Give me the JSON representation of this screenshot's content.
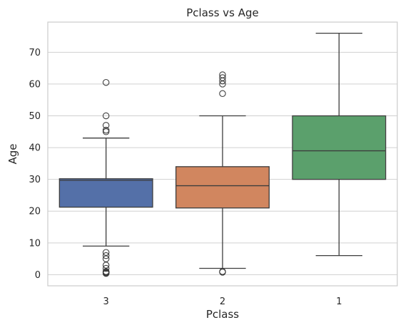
{
  "chart_data": {
    "type": "box",
    "title": "Pclass vs Age",
    "xlabel": "Pclass",
    "ylabel": "Age",
    "ylim": [
      -3.5,
      79.5
    ],
    "yticks": [
      0,
      10,
      20,
      30,
      40,
      50,
      60,
      70
    ],
    "grid": true,
    "categories": [
      "3",
      "2",
      "1"
    ],
    "series": [
      {
        "color": "#5470a8",
        "boxes": [
          {
            "category": "3",
            "color": "#5470a8",
            "whisker_low": 9,
            "q1": 21.25,
            "median": 29.7,
            "q3": 30.2,
            "whisker_high": 43,
            "outliers": [
              60.5,
              50,
              47,
              45.5,
              45,
              7,
              6,
              5,
              3,
              2,
              1,
              0.9,
              0.8,
              0.7,
              0.5,
              0.4
            ]
          },
          {
            "category": "2",
            "color": "#d1865f",
            "whisker_low": 2,
            "q1": 21,
            "median": 28,
            "q3": 34,
            "whisker_high": 50,
            "outliers": [
              62.9,
              62,
              61,
              60,
              57,
              1,
              0.8
            ]
          },
          {
            "category": "1",
            "color": "#5ba06c",
            "whisker_low": 6,
            "q1": 30,
            "median": 39,
            "q3": 50,
            "whisker_high": 76,
            "outliers": []
          }
        ]
      }
    ]
  }
}
